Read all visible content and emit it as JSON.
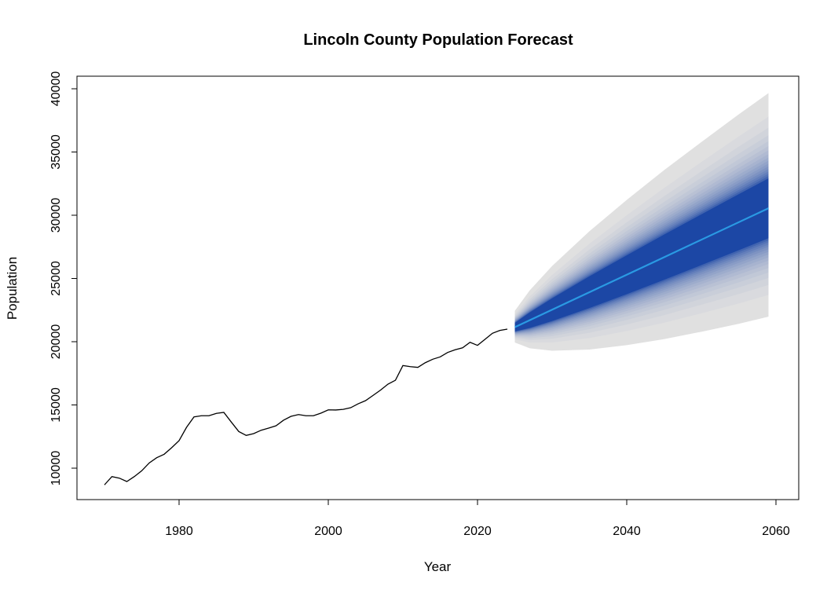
{
  "chart_data": {
    "type": "line",
    "title": "Lincoln County Population Forecast",
    "xlabel": "Year",
    "ylabel": "Population",
    "xlim": [
      1965.5,
      2062.3
    ],
    "ylim": [
      7500,
      41000
    ],
    "x_ticks": [
      "1980",
      "2000",
      "2020",
      "2040",
      "2060"
    ],
    "y_ticks": [
      "10000",
      "15000",
      "20000",
      "25000",
      "30000",
      "35000",
      "40000"
    ],
    "grid": false,
    "history": {
      "x": [
        1970,
        1971,
        1972,
        1973,
        1974,
        1975,
        1976,
        1977,
        1978,
        1979,
        1980,
        1981,
        1982,
        1983,
        1984,
        1985,
        1986,
        1987,
        1988,
        1989,
        1990,
        1991,
        1992,
        1993,
        1994,
        1995,
        1996,
        1997,
        1998,
        1999,
        2000,
        2001,
        2002,
        2003,
        2004,
        2005,
        2006,
        2007,
        2008,
        2009,
        2010,
        2011,
        2012,
        2013,
        2014,
        2015,
        2016,
        2017,
        2018,
        2019,
        2020,
        2021,
        2022,
        2023,
        2024
      ],
      "y": [
        8680,
        9335,
        9210,
        8945,
        9335,
        9795,
        10415,
        10825,
        11100,
        11615,
        12175,
        13230,
        14055,
        14145,
        14145,
        14330,
        14410,
        13645,
        12900,
        12590,
        12735,
        13000,
        13170,
        13355,
        13790,
        14100,
        14240,
        14145,
        14145,
        14350,
        14610,
        14600,
        14650,
        14780,
        15090,
        15340,
        15755,
        16170,
        16645,
        16955,
        18115,
        18030,
        17970,
        18340,
        18615,
        18800,
        19150,
        19360,
        19520,
        19955,
        19710,
        20185,
        20665,
        20890,
        20995
      ],
      "color": "#000000"
    },
    "forecast": {
      "x": [
        2025,
        2027,
        2030,
        2035,
        2040,
        2045,
        2050,
        2055,
        2059
      ],
      "mean": [
        21150,
        21703,
        22533,
        23915,
        25298,
        26680,
        28063,
        29445,
        30551
      ],
      "levels": [
        51,
        54,
        57,
        60,
        63,
        66,
        69,
        72,
        75,
        78,
        81,
        84,
        87,
        90,
        93,
        96,
        99
      ],
      "lower_51": [
        20815,
        21089,
        21635,
        22661,
        23760,
        24890,
        26053,
        27226,
        28182
      ],
      "upper_51": [
        21485,
        22317,
        23431,
        25169,
        26836,
        28470,
        30073,
        31664,
        32920
      ],
      "lower_99": [
        19938,
        19482,
        19284,
        19376,
        19730,
        20200,
        20788,
        21413,
        21976
      ],
      "upper_99": [
        22438,
        24062,
        25984,
        28735,
        31210,
        33560,
        35788,
        37973,
        39656
      ],
      "mean_color": "#2a9ae3",
      "inner_color": "#1c47a5",
      "outer_color": "#e0e0e0"
    }
  }
}
